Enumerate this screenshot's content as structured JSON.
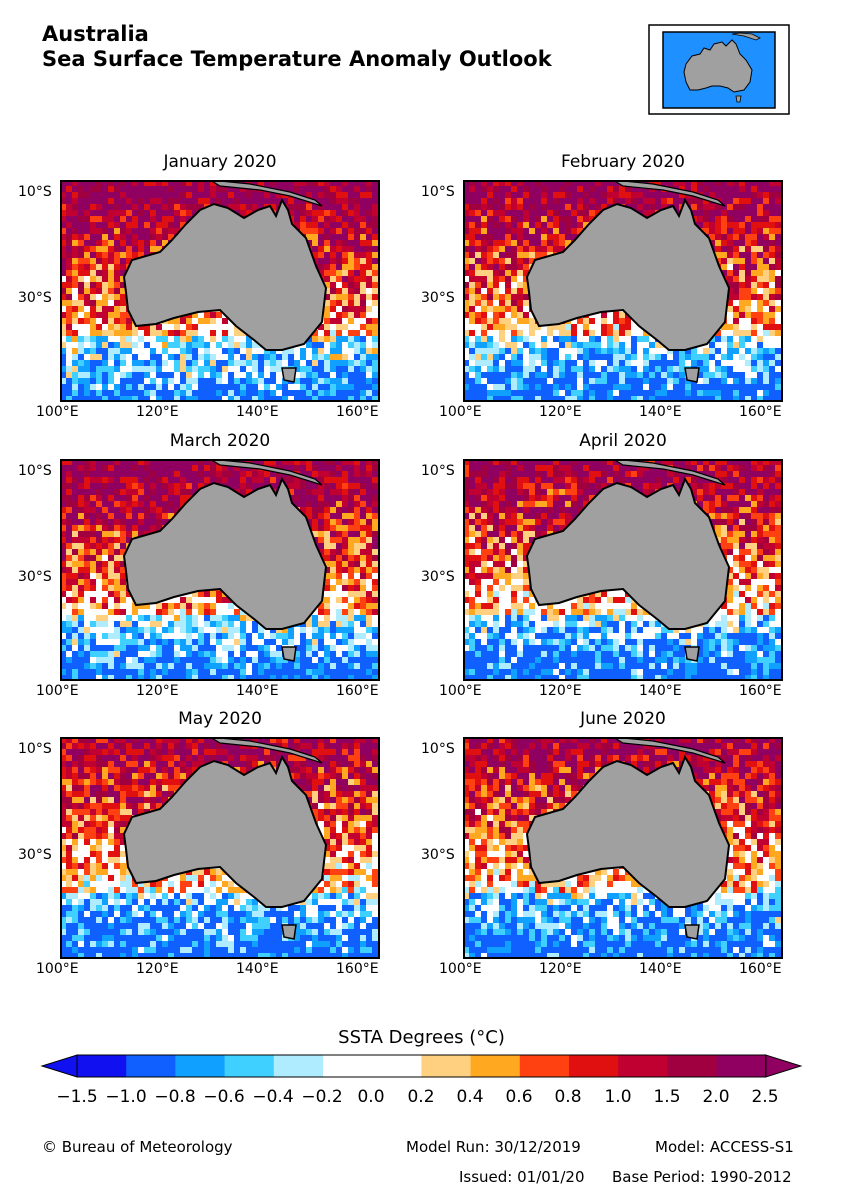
{
  "header": {
    "title": "Australia",
    "subtitle": "Sea Surface Temperature Anomaly Outlook"
  },
  "panels": [
    {
      "title": "January 2020"
    },
    {
      "title": "February 2020"
    },
    {
      "title": "March 2020"
    },
    {
      "title": "April 2020"
    },
    {
      "title": "May 2020"
    },
    {
      "title": "June 2020"
    }
  ],
  "axes": {
    "lat_labels": [
      "10°S",
      "30°S"
    ],
    "lon_labels": [
      "100°E",
      "120°E",
      "140°E",
      "160°E"
    ]
  },
  "colorbar": {
    "title": "SSTA Degrees (°C)",
    "labels": [
      "−1.5",
      "−1.0",
      "−0.8",
      "−0.6",
      "−0.4",
      "−0.2",
      "0.0",
      "0.2",
      "0.4",
      "0.6",
      "0.8",
      "1.0",
      "1.5",
      "2.0",
      "2.5"
    ],
    "colors": [
      "#1010f0",
      "#1060ff",
      "#10a0ff",
      "#40d0ff",
      "#b0ecff",
      "#ffffff",
      "#ffffff",
      "#ffd080",
      "#ffa820",
      "#ff4010",
      "#e01010",
      "#c00030",
      "#a00040",
      "#900060"
    ]
  },
  "colors": {
    "land": "#a0a0a0",
    "ocean": "#1e90ff",
    "coast": "#000000"
  },
  "footer": {
    "copyright": "© Bureau of Meteorology",
    "model_run": "Model Run: 30/12/2019",
    "model": "Model: ACCESS-S1",
    "issued": "Issued: 01/01/20",
    "base_period": "Base Period: 1990-2012"
  }
}
